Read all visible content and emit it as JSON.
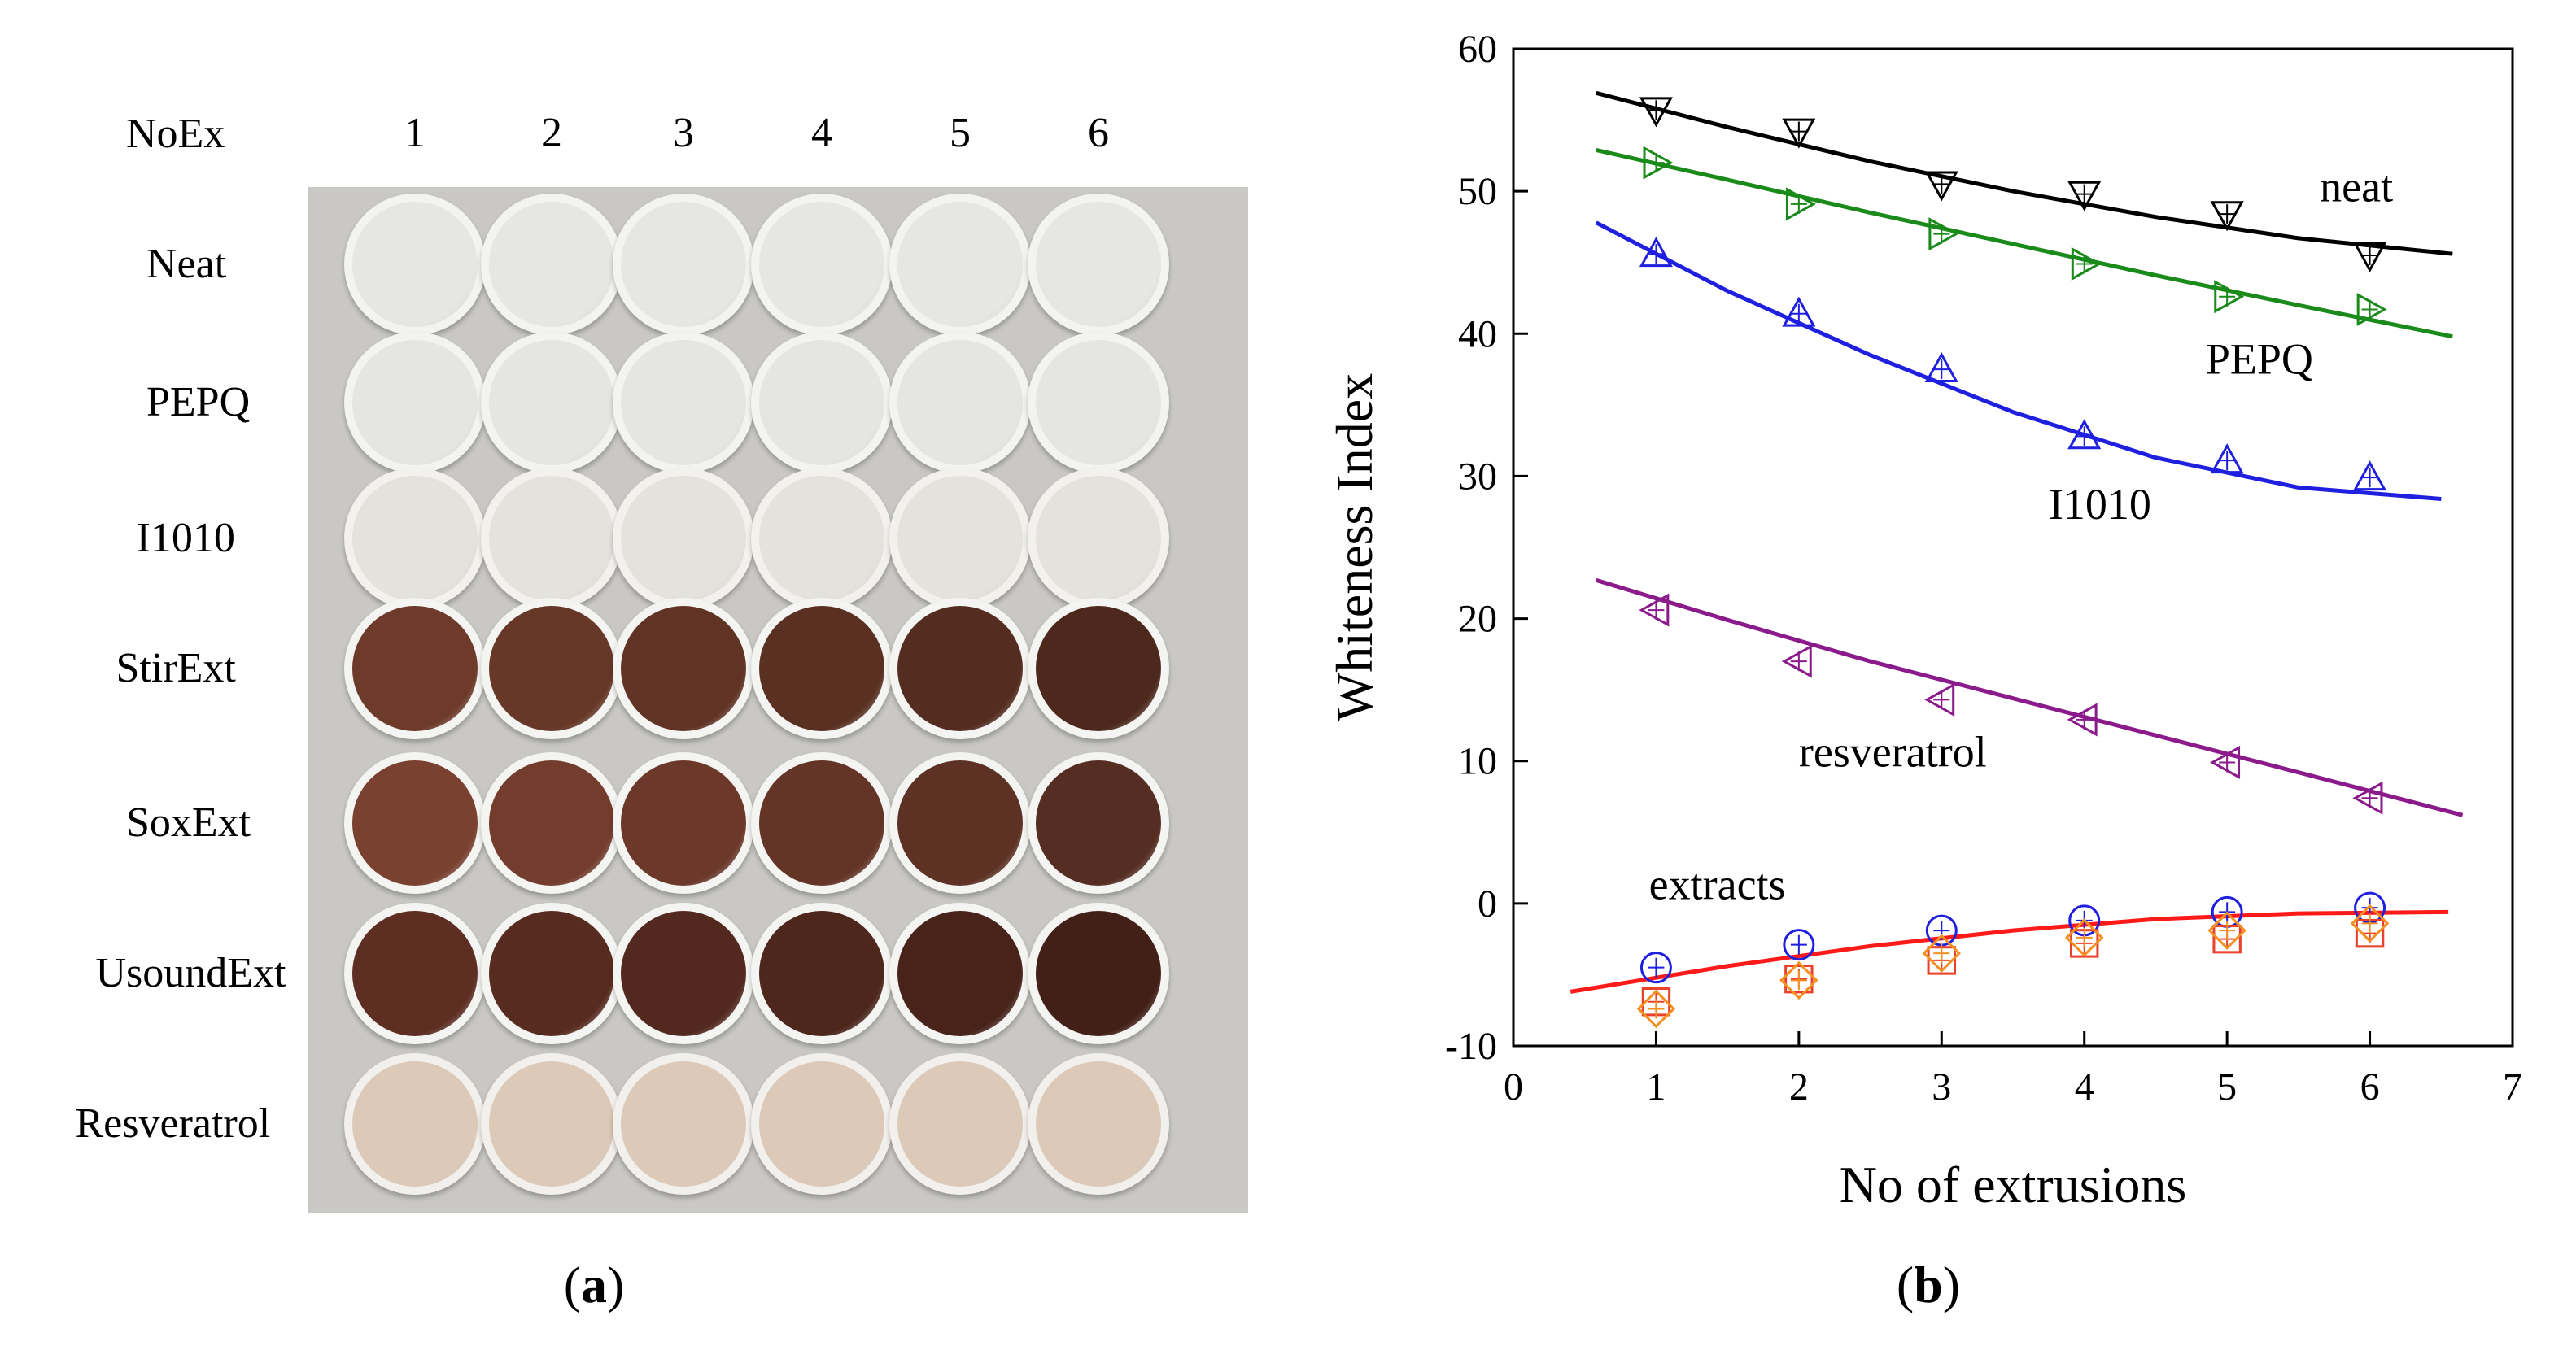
{
  "panel_a": {
    "header": "NoEx",
    "columns": [
      "1",
      "2",
      "3",
      "4",
      "5",
      "6"
    ],
    "rows": [
      {
        "label": "Neat",
        "color": "#f3f3f1",
        "inner": "#e6e6e3"
      },
      {
        "label": "PEPQ",
        "color": "#f3f3f1",
        "inner": "#e5e5e2"
      },
      {
        "label": "I1010",
        "color": "#f2f1ee",
        "inner": "#e4e2dd"
      },
      {
        "label": "StirExt",
        "color": "#f4f4f2",
        "inner": "#6e3a2a"
      },
      {
        "label": "SoxExt",
        "color": "#f4f4f2",
        "inner": "#7a4030"
      },
      {
        "label": "UsoundExt",
        "color": "#f4f4f2",
        "inner": "#5e2e22"
      },
      {
        "label": "Resveratrol",
        "color": "#f2f0ec",
        "inner": "#dcc9b8"
      }
    ],
    "caption_open": "(",
    "caption_letter": "a",
    "caption_close": ")"
  },
  "panel_b": {
    "caption_open": "(",
    "caption_letter": "b",
    "caption_close": ")"
  },
  "chart_data": {
    "type": "scatter",
    "xlabel": "No of extrusions",
    "ylabel": "Whiteness Index",
    "xlim": [
      0,
      7
    ],
    "ylim": [
      -10,
      60
    ],
    "xticks": [
      "0",
      "1",
      "2",
      "3",
      "4",
      "5",
      "6",
      "7"
    ],
    "yticks": [
      "-10",
      "0",
      "10",
      "20",
      "30",
      "40",
      "50",
      "60"
    ],
    "grid": false,
    "annotations": [
      {
        "text": "neat",
        "x": 5.65,
        "y": 49.3
      },
      {
        "text": "PEPQ",
        "x": 4.85,
        "y": 37.2
      },
      {
        "text": "I1010",
        "x": 3.75,
        "y": 27.0
      },
      {
        "text": "resveratrol",
        "x": 2.0,
        "y": 9.6
      },
      {
        "text": "extracts",
        "x": 0.95,
        "y": 0.3
      }
    ],
    "series": [
      {
        "marker": "triangle-down",
        "color": "#000000",
        "x": [
          1,
          2,
          3,
          4,
          5,
          6
        ],
        "y": [
          55.7,
          54.2,
          50.5,
          49.8,
          48.4,
          45.5
        ],
        "fit_x": [
          0.58,
          1.5,
          2.5,
          3.5,
          4.5,
          5.5,
          6.58
        ],
        "fit_y": [
          56.9,
          54.5,
          52.1,
          50.0,
          48.2,
          46.7,
          45.6
        ]
      },
      {
        "marker": "triangle-right",
        "color": "#1a8a1a",
        "x": [
          1,
          2,
          3,
          4,
          5,
          6
        ],
        "y": [
          52.0,
          49.1,
          47.0,
          44.9,
          42.6,
          41.7
        ],
        "fit_x": [
          0.58,
          1.5,
          2.5,
          3.5,
          4.5,
          5.5,
          6.58
        ],
        "fit_y": [
          52.9,
          50.8,
          48.5,
          46.3,
          44.1,
          42.0,
          39.8
        ]
      },
      {
        "marker": "triangle-up",
        "color": "#1f1fe0",
        "x": [
          1,
          2,
          3,
          4,
          5,
          6
        ],
        "y": [
          45.6,
          41.4,
          37.5,
          32.8,
          31.1,
          29.9
        ],
        "fit_x": [
          0.58,
          1.5,
          2.5,
          3.5,
          4.5,
          5.5,
          6.5
        ],
        "fit_y": [
          47.8,
          43.0,
          38.5,
          34.5,
          31.3,
          29.2,
          28.4
        ]
      },
      {
        "marker": "triangle-left",
        "color": "#8b1a8b",
        "x": [
          1,
          2,
          3,
          4,
          5,
          6
        ],
        "y": [
          20.6,
          17.0,
          14.3,
          12.9,
          9.9,
          7.4
        ],
        "fit_x": [
          0.58,
          1.5,
          2.5,
          3.5,
          4.5,
          5.5,
          6.65
        ],
        "fit_y": [
          22.7,
          19.9,
          17.0,
          14.4,
          11.8,
          9.2,
          6.2
        ]
      },
      {
        "marker": "circle",
        "color": "#1f1fe0",
        "x": [
          1,
          2,
          3,
          4,
          5,
          6
        ],
        "y": [
          -4.5,
          -2.9,
          -1.9,
          -1.2,
          -0.6,
          -0.3
        ]
      },
      {
        "marker": "square",
        "color": "#e8402a",
        "x": [
          1,
          2,
          3,
          4,
          5,
          6
        ],
        "y": [
          -6.9,
          -5.3,
          -4.0,
          -2.8,
          -2.5,
          -2.1
        ]
      },
      {
        "marker": "diamond",
        "color": "#f59020",
        "x": [
          1,
          2,
          3,
          4,
          5,
          6
        ],
        "y": [
          -7.4,
          -5.4,
          -3.5,
          -2.4,
          -1.9,
          -1.4
        ]
      },
      {
        "marker": "none",
        "color": "#ff1a1a",
        "fit_x": [
          0.4,
          1.5,
          2.5,
          3.5,
          4.5,
          5.5,
          6.55
        ],
        "fit_y": [
          -6.2,
          -4.4,
          -3.0,
          -1.9,
          -1.1,
          -0.7,
          -0.6
        ]
      }
    ]
  }
}
